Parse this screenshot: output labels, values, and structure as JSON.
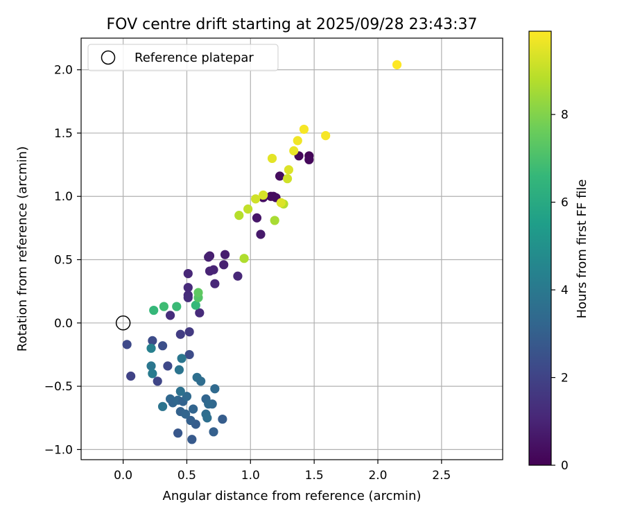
{
  "chart_data": {
    "type": "scatter",
    "title": "FOV centre drift starting at 2025/09/28 23:43:37",
    "xlabel": "Angular distance from reference (arcmin)",
    "ylabel": "Rotation from reference (arcmin)",
    "xlim": [
      -0.33,
      2.98
    ],
    "ylim": [
      -1.08,
      2.25
    ],
    "x_ticks": [
      0.0,
      0.5,
      1.0,
      1.5,
      2.0,
      2.5
    ],
    "x_tick_labels": [
      "0.0",
      "0.5",
      "1.0",
      "1.5",
      "2.0",
      "2.5"
    ],
    "y_ticks": [
      -1.0,
      -0.5,
      0.0,
      0.5,
      1.0,
      1.5,
      2.0
    ],
    "y_tick_labels": [
      "−1.0",
      "−0.5",
      "0.0",
      "0.5",
      "1.0",
      "1.5",
      "2.0"
    ],
    "grid": true,
    "legend": {
      "position": "top-left",
      "entries": [
        "Reference platepar"
      ]
    },
    "reference_point": {
      "x": 0.0,
      "y": 0.0,
      "label": "Reference platepar",
      "marker": "open-circle"
    },
    "colorbar": {
      "label": "Hours from first FF file",
      "colormap": "viridis",
      "range": [
        0,
        9.9
      ],
      "ticks": [
        0,
        2,
        4,
        6,
        8
      ],
      "tick_labels": [
        "0",
        "2",
        "4",
        "6",
        "8"
      ],
      "colors": [
        "#440154",
        "#482878",
        "#3e4989",
        "#31688e",
        "#26828e",
        "#1f9e89",
        "#35b779",
        "#6ece58",
        "#b5de2b",
        "#fde725"
      ]
    },
    "points": [
      {
        "x": 1.16,
        "y": 1.0,
        "t": 0.2
      },
      {
        "x": 1.18,
        "y": 1.0,
        "t": 0.3
      },
      {
        "x": 1.2,
        "y": 0.99,
        "t": 0.3
      },
      {
        "x": 1.1,
        "y": 0.99,
        "t": 0.4
      },
      {
        "x": 1.23,
        "y": 1.16,
        "t": 0.3
      },
      {
        "x": 1.38,
        "y": 1.32,
        "t": 0.2
      },
      {
        "x": 1.46,
        "y": 1.32,
        "t": 0.1
      },
      {
        "x": 1.46,
        "y": 1.29,
        "t": 0.2
      },
      {
        "x": 1.05,
        "y": 0.83,
        "t": 0.6
      },
      {
        "x": 1.08,
        "y": 0.7,
        "t": 0.7
      },
      {
        "x": 0.68,
        "y": 0.53,
        "t": 0.8
      },
      {
        "x": 0.67,
        "y": 0.52,
        "t": 0.9
      },
      {
        "x": 0.8,
        "y": 0.54,
        "t": 0.8
      },
      {
        "x": 0.79,
        "y": 0.46,
        "t": 0.9
      },
      {
        "x": 0.68,
        "y": 0.41,
        "t": 1.0
      },
      {
        "x": 0.71,
        "y": 0.42,
        "t": 1.0
      },
      {
        "x": 0.9,
        "y": 0.37,
        "t": 1.1
      },
      {
        "x": 0.72,
        "y": 0.31,
        "t": 1.1
      },
      {
        "x": 0.51,
        "y": 0.39,
        "t": 1.1
      },
      {
        "x": 0.51,
        "y": 0.28,
        "t": 1.2
      },
      {
        "x": 0.51,
        "y": 0.22,
        "t": 1.2
      },
      {
        "x": 0.51,
        "y": 0.2,
        "t": 1.3
      },
      {
        "x": 0.6,
        "y": 0.08,
        "t": 1.2
      },
      {
        "x": 0.37,
        "y": 0.06,
        "t": 1.3
      },
      {
        "x": 0.45,
        "y": -0.09,
        "t": 1.8
      },
      {
        "x": 0.52,
        "y": -0.07,
        "t": 1.7
      },
      {
        "x": 0.03,
        "y": -0.17,
        "t": 2.2
      },
      {
        "x": 0.23,
        "y": -0.14,
        "t": 2.3
      },
      {
        "x": 0.31,
        "y": -0.18,
        "t": 2.4
      },
      {
        "x": 0.06,
        "y": -0.42,
        "t": 2.0
      },
      {
        "x": 0.27,
        "y": -0.46,
        "t": 2.1
      },
      {
        "x": 0.35,
        "y": -0.34,
        "t": 2.2
      },
      {
        "x": 0.52,
        "y": -0.25,
        "t": 2.3
      },
      {
        "x": 0.43,
        "y": -0.87,
        "t": 2.7
      },
      {
        "x": 0.54,
        "y": -0.92,
        "t": 2.8
      },
      {
        "x": 0.71,
        "y": -0.86,
        "t": 3.0
      },
      {
        "x": 0.78,
        "y": -0.76,
        "t": 2.9
      },
      {
        "x": 0.57,
        "y": -0.8,
        "t": 2.9
      },
      {
        "x": 0.53,
        "y": -0.77,
        "t": 3.0
      },
      {
        "x": 0.45,
        "y": -0.7,
        "t": 3.1
      },
      {
        "x": 0.49,
        "y": -0.72,
        "t": 3.2
      },
      {
        "x": 0.55,
        "y": -0.68,
        "t": 3.2
      },
      {
        "x": 0.37,
        "y": -0.6,
        "t": 3.3
      },
      {
        "x": 0.39,
        "y": -0.63,
        "t": 3.2
      },
      {
        "x": 0.43,
        "y": -0.61,
        "t": 3.3
      },
      {
        "x": 0.47,
        "y": -0.62,
        "t": 3.1
      },
      {
        "x": 0.5,
        "y": -0.58,
        "t": 3.4
      },
      {
        "x": 0.65,
        "y": -0.6,
        "t": 3.2
      },
      {
        "x": 0.7,
        "y": -0.64,
        "t": 3.3
      },
      {
        "x": 0.67,
        "y": -0.64,
        "t": 3.4
      },
      {
        "x": 0.65,
        "y": -0.72,
        "t": 3.5
      },
      {
        "x": 0.66,
        "y": -0.75,
        "t": 3.6
      },
      {
        "x": 0.72,
        "y": -0.52,
        "t": 3.4
      },
      {
        "x": 0.58,
        "y": -0.43,
        "t": 3.6
      },
      {
        "x": 0.61,
        "y": -0.46,
        "t": 3.5
      },
      {
        "x": 0.45,
        "y": -0.54,
        "t": 3.7
      },
      {
        "x": 0.31,
        "y": -0.66,
        "t": 3.8
      },
      {
        "x": 0.44,
        "y": -0.37,
        "t": 3.8
      },
      {
        "x": 0.46,
        "y": -0.28,
        "t": 3.9
      },
      {
        "x": 0.22,
        "y": -0.34,
        "t": 3.9
      },
      {
        "x": 0.23,
        "y": -0.4,
        "t": 4.1
      },
      {
        "x": 0.22,
        "y": -0.2,
        "t": 4.3
      },
      {
        "x": 0.24,
        "y": 0.1,
        "t": 6.6
      },
      {
        "x": 0.32,
        "y": 0.13,
        "t": 6.8
      },
      {
        "x": 0.42,
        "y": 0.13,
        "t": 6.7
      },
      {
        "x": 0.57,
        "y": 0.14,
        "t": 6.6
      },
      {
        "x": 0.59,
        "y": 0.2,
        "t": 7.2
      },
      {
        "x": 0.59,
        "y": 0.24,
        "t": 7.4
      },
      {
        "x": 0.95,
        "y": 0.51,
        "t": 8.7
      },
      {
        "x": 0.91,
        "y": 0.85,
        "t": 8.8
      },
      {
        "x": 1.19,
        "y": 0.81,
        "t": 8.6
      },
      {
        "x": 1.26,
        "y": 0.94,
        "t": 8.8
      },
      {
        "x": 0.98,
        "y": 0.9,
        "t": 9.0
      },
      {
        "x": 1.04,
        "y": 0.98,
        "t": 9.2
      },
      {
        "x": 1.1,
        "y": 1.01,
        "t": 9.3
      },
      {
        "x": 1.24,
        "y": 0.95,
        "t": 9.4
      },
      {
        "x": 1.29,
        "y": 1.14,
        "t": 9.2
      },
      {
        "x": 1.3,
        "y": 1.21,
        "t": 9.4
      },
      {
        "x": 1.17,
        "y": 1.3,
        "t": 9.5
      },
      {
        "x": 1.34,
        "y": 1.36,
        "t": 9.6
      },
      {
        "x": 1.37,
        "y": 1.44,
        "t": 9.7
      },
      {
        "x": 1.42,
        "y": 1.53,
        "t": 9.8
      },
      {
        "x": 1.59,
        "y": 1.48,
        "t": 9.8
      },
      {
        "x": 2.15,
        "y": 2.04,
        "t": 9.9
      }
    ]
  }
}
